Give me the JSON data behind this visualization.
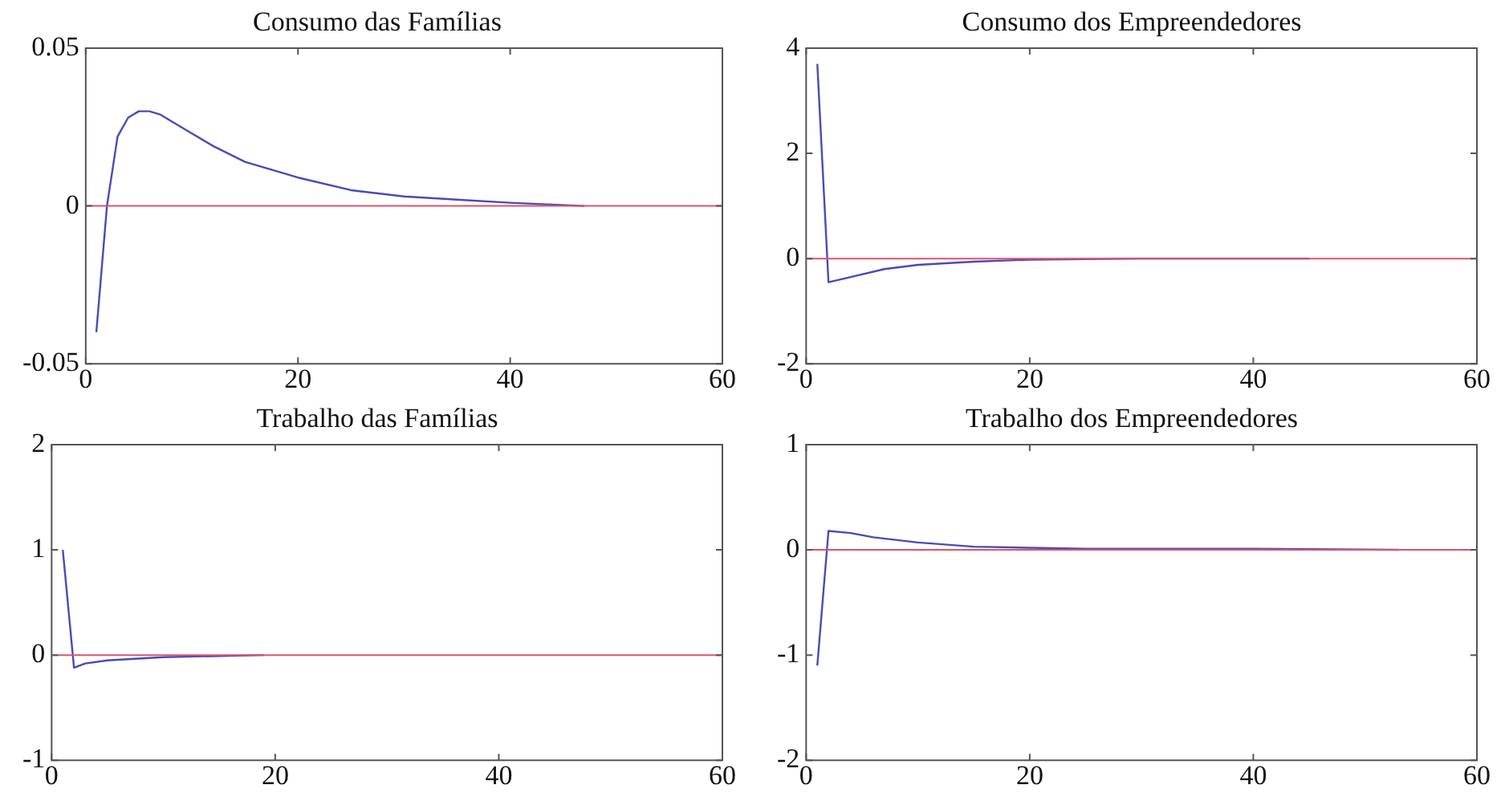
{
  "chart_data": [
    {
      "type": "line",
      "title": "Consumo das Famílias",
      "xlim": [
        0,
        60
      ],
      "xticks": [
        0,
        20,
        40,
        60
      ],
      "ylim": [
        -0.05,
        0.05
      ],
      "yticks": [
        -0.05,
        0,
        0.05
      ],
      "grid": false,
      "legend": false,
      "marker": "none",
      "line_style": "solid",
      "ref_lines": [
        {
          "axis": "y",
          "value": 0,
          "color": "#e0506e"
        }
      ],
      "series": [
        {
          "color": "#4a4ab8",
          "x": [
            1,
            2,
            3,
            4,
            5,
            6,
            7,
            8,
            10,
            12,
            15,
            20,
            25,
            30,
            35,
            40,
            47
          ],
          "values": [
            -0.04,
            0,
            0.022,
            0.028,
            0.03,
            0.03,
            0.029,
            0.027,
            0.023,
            0.019,
            0.014,
            0.009,
            0.005,
            0.003,
            0.002,
            0.001,
            0
          ]
        }
      ]
    },
    {
      "type": "line",
      "title": "Consumo dos Empreendedores",
      "xlim": [
        0,
        60
      ],
      "xticks": [
        0,
        20,
        40,
        60
      ],
      "ylim": [
        -2,
        4
      ],
      "yticks": [
        -2,
        0,
        2,
        4
      ],
      "grid": false,
      "legend": false,
      "marker": "none",
      "line_style": "solid",
      "ref_lines": [
        {
          "axis": "y",
          "value": 0,
          "color": "#e0506e"
        }
      ],
      "series": [
        {
          "color": "#4a4ab8",
          "x": [
            1,
            2,
            4,
            7,
            10,
            15,
            20,
            30,
            45
          ],
          "values": [
            3.7,
            -0.45,
            -0.35,
            -0.2,
            -0.12,
            -0.06,
            -0.02,
            0,
            0
          ]
        }
      ]
    },
    {
      "type": "line",
      "title": "Trabalho das Famílias",
      "xlim": [
        0,
        60
      ],
      "xticks": [
        0,
        20,
        40,
        60
      ],
      "ylim": [
        -1,
        2
      ],
      "yticks": [
        -1,
        0,
        1,
        2
      ],
      "grid": false,
      "legend": false,
      "marker": "none",
      "line_style": "solid",
      "ref_lines": [
        {
          "axis": "y",
          "value": 0,
          "color": "#e0506e"
        }
      ],
      "series": [
        {
          "color": "#4a4ab8",
          "x": [
            1,
            2,
            3,
            5,
            10,
            19
          ],
          "values": [
            1,
            -0.12,
            -0.08,
            -0.05,
            -0.02,
            0
          ]
        }
      ]
    },
    {
      "type": "line",
      "title": "Trabalho dos Empreendedores",
      "xlim": [
        0,
        60
      ],
      "xticks": [
        0,
        20,
        40,
        60
      ],
      "ylim": [
        -2,
        1
      ],
      "yticks": [
        -2,
        -1,
        0,
        1
      ],
      "grid": false,
      "legend": false,
      "marker": "none",
      "line_style": "solid",
      "ref_lines": [
        {
          "axis": "y",
          "value": 0,
          "color": "#e0506e"
        }
      ],
      "series": [
        {
          "color": "#4a4ab8",
          "x": [
            1,
            2,
            4,
            6,
            10,
            15,
            25,
            40,
            53
          ],
          "values": [
            -1.1,
            0.18,
            0.16,
            0.12,
            0.07,
            0.03,
            0.01,
            0.01,
            0
          ]
        }
      ]
    }
  ]
}
